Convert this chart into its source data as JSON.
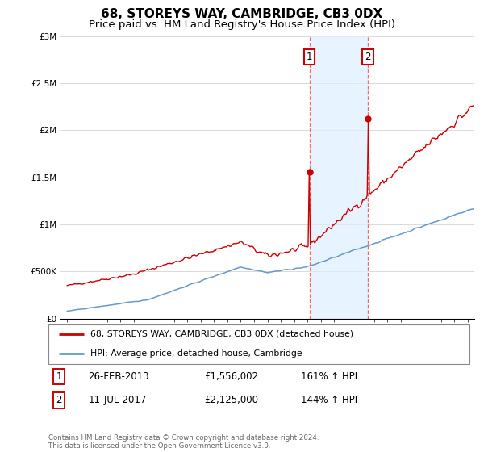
{
  "title": "68, STOREYS WAY, CAMBRIDGE, CB3 0DX",
  "subtitle": "Price paid vs. HM Land Registry's House Price Index (HPI)",
  "ylim": [
    0,
    3000000
  ],
  "yticks": [
    0,
    500000,
    1000000,
    1500000,
    2000000,
    2500000,
    3000000
  ],
  "ytick_labels": [
    "£0",
    "£500K",
    "£1M",
    "£1.5M",
    "£2M",
    "£2.5M",
    "£3M"
  ],
  "sale1_date_num": 2013.15,
  "sale1_price": 1556002,
  "sale2_date_num": 2017.53,
  "sale2_price": 2125000,
  "red_line_color": "#cc0000",
  "blue_line_color": "#6699cc",
  "shade_color": "#ddeeff",
  "vline_color": "#ff6666",
  "marker_label_box_color": "#cc0000",
  "legend_line1": "68, STOREYS WAY, CAMBRIDGE, CB3 0DX (detached house)",
  "legend_line2": "HPI: Average price, detached house, Cambridge",
  "footer": "Contains HM Land Registry data © Crown copyright and database right 2024.\nThis data is licensed under the Open Government Licence v3.0.",
  "title_fontsize": 11,
  "subtitle_fontsize": 9.5,
  "tick_fontsize": 7.5
}
